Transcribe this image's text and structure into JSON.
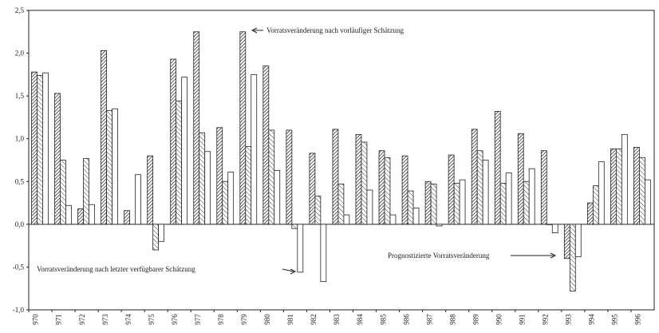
{
  "chart_data": {
    "type": "bar",
    "categories": [
      "970",
      "971",
      "972",
      "973",
      "974",
      "975",
      "976",
      "977",
      "978",
      "979",
      "980",
      "981",
      "982",
      "983",
      "984",
      "985",
      "986",
      "987",
      "988",
      "989",
      "990",
      "991",
      "992",
      "993",
      "994",
      "995",
      "996"
    ],
    "series": [
      {
        "name": "Vorratsveränderung nach vorläufiger Schätzung",
        "color": "#333333",
        "values": [
          1.78,
          1.53,
          0.18,
          2.03,
          0.16,
          0.8,
          1.93,
          2.25,
          1.13,
          2.25,
          1.85,
          1.1,
          0.83,
          1.11,
          1.05,
          0.86,
          0.8,
          0.5,
          0.81,
          1.11,
          1.32,
          1.06,
          0.86,
          -0.4,
          0.25,
          0.88,
          0.9
        ]
      },
      {
        "name": "Vorratsveränderung nach letzter verfügbarer Schätzung",
        "color": "#555555",
        "values": [
          1.74,
          0.75,
          0.77,
          1.33,
          null,
          -0.3,
          1.44,
          1.07,
          0.5,
          0.91,
          1.1,
          -0.05,
          0.33,
          0.47,
          0.96,
          0.78,
          0.39,
          0.47,
          0.48,
          0.86,
          0.48,
          0.5,
          0.0,
          -0.78,
          0.45,
          0.88,
          0.78
        ]
      },
      {
        "name": "Prognostizierte Vorratsveränderung",
        "color": "#ffffff",
        "values": [
          1.77,
          0.22,
          0.23,
          1.35,
          0.58,
          -0.2,
          1.72,
          0.85,
          0.61,
          1.75,
          0.63,
          -0.56,
          -0.67,
          0.11,
          0.4,
          0.11,
          0.19,
          -0.02,
          0.52,
          0.75,
          0.6,
          0.65,
          -0.1,
          -0.38,
          0.73,
          1.05,
          0.52
        ]
      }
    ],
    "ylim": [
      -1.0,
      2.5
    ],
    "yticks": [
      {
        "value": 2.5,
        "label": "2,5"
      },
      {
        "value": 2.0,
        "label": "2,0"
      },
      {
        "value": 1.5,
        "label": "1,5"
      },
      {
        "value": 1.0,
        "label": "1,0"
      },
      {
        "value": 0.5,
        "label": "0,5"
      },
      {
        "value": 0.0,
        "label": "0,0"
      },
      {
        "value": -0.5,
        "label": "-0,5"
      },
      {
        "value": -1.0,
        "label": "-1,0"
      }
    ]
  }
}
